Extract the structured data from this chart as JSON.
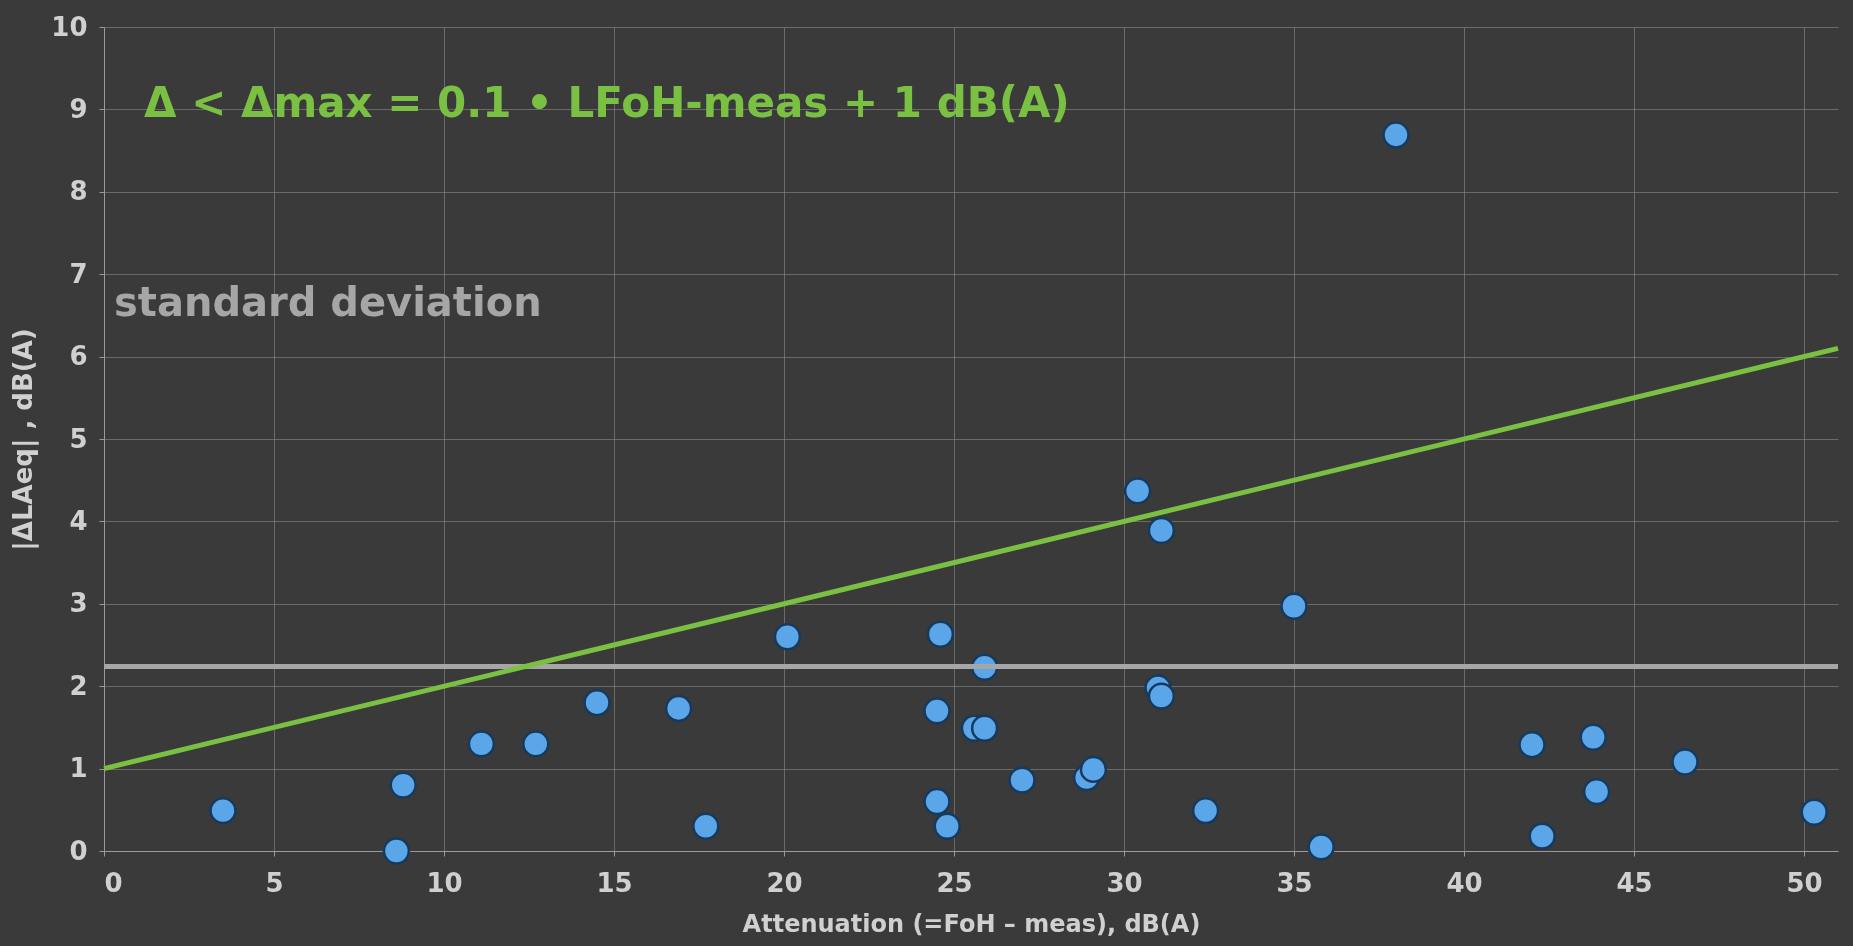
{
  "chart_data": {
    "type": "scatter",
    "xlabel": "Attenuation (=FoH – meas), dB(A)",
    "ylabel": "|ΔLAeq| , dB(A)",
    "annotations": [
      "Δ < Δmax = 0.1 • LFoH-meas + 1 dB(A)"
    ],
    "series": [
      {
        "color": "#5aa6e8",
        "marker": "circle",
        "x": [
          3.5,
          8.6,
          8.8,
          11.1,
          12.7,
          14.5,
          16.9,
          17.7,
          20.1,
          24.6,
          24.5,
          25.9,
          25.6,
          25.9,
          24.5,
          24.8,
          27.0,
          28.9,
          29.1,
          30.4,
          31.1,
          31.0,
          31.1,
          32.4,
          35.0,
          35.8,
          42.0,
          42.3,
          43.8,
          43.9,
          46.5,
          50.3,
          38.0
        ],
        "values": [
          0.49,
          0.0,
          0.8,
          1.3,
          1.3,
          1.8,
          1.73,
          0.3,
          2.6,
          2.63,
          1.7,
          2.23,
          1.49,
          1.49,
          0.6,
          0.3,
          0.86,
          0.89,
          0.99,
          4.37,
          3.89,
          1.98,
          1.88,
          0.49,
          2.97,
          0.05,
          1.29,
          0.18,
          1.38,
          0.72,
          1.08,
          0.47,
          8.69
        ]
      },
      {
        "type": "line",
        "color": "#7ac143",
        "line_style": "solid",
        "x": [
          0,
          51
        ],
        "values": [
          1,
          6.1
        ]
      }
    ],
    "ref_lines": [
      {
        "axis": "y",
        "value": 2.24,
        "label": "standard deviation",
        "color": "#a6a6a6",
        "line_style": "solid"
      }
    ],
    "xlim": [
      0,
      51
    ],
    "ylim": [
      0,
      10
    ],
    "xticks": [
      0,
      5,
      10,
      15,
      20,
      25,
      30,
      35,
      40,
      45,
      50
    ],
    "yticks": [
      0,
      1,
      2,
      3,
      4,
      5,
      6,
      7,
      8,
      9,
      10
    ],
    "grid": true
  }
}
